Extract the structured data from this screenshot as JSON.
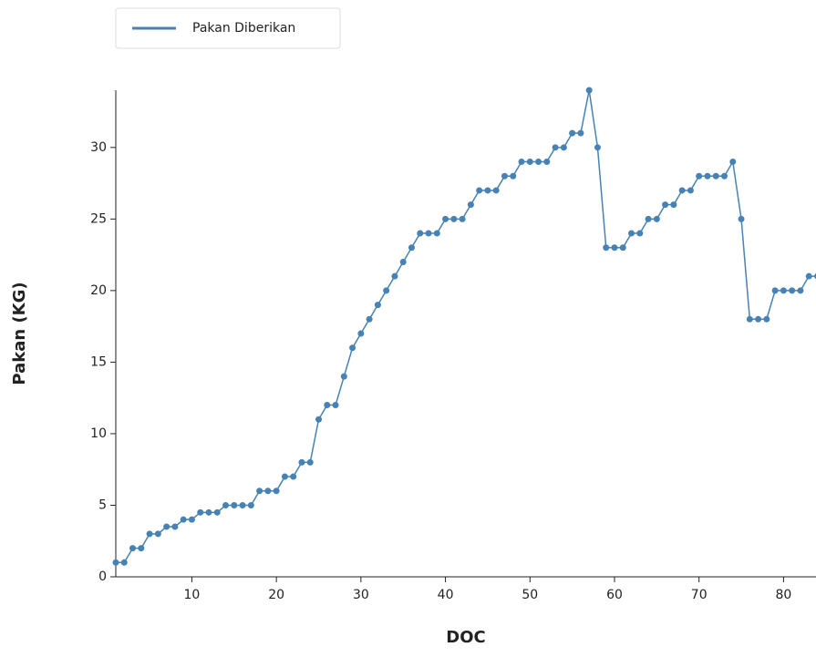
{
  "chart_data": {
    "type": "line",
    "xlabel": "DOC",
    "ylabel": "Pakan (KG)",
    "x": [
      1,
      2,
      3,
      4,
      5,
      6,
      7,
      8,
      9,
      10,
      11,
      12,
      13,
      14,
      15,
      16,
      17,
      18,
      19,
      20,
      21,
      22,
      23,
      24,
      25,
      26,
      27,
      28,
      29,
      30,
      31,
      32,
      33,
      34,
      35,
      36,
      37,
      38,
      39,
      40,
      41,
      42,
      43,
      44,
      45,
      46,
      47,
      48,
      49,
      50,
      51,
      52,
      53,
      54,
      55,
      56,
      57,
      58,
      59,
      60,
      61,
      62,
      63,
      64,
      65,
      66,
      67,
      68,
      69,
      70,
      71,
      72,
      73,
      74,
      75,
      76,
      77,
      78,
      79,
      80,
      81,
      82,
      83,
      84
    ],
    "series": [
      {
        "name": "Pakan Diberikan",
        "color": "#4682b4",
        "values": [
          1,
          1,
          2,
          2,
          3,
          3,
          3.5,
          3.5,
          4,
          4,
          4.5,
          4.5,
          4.5,
          5,
          5,
          5,
          5,
          6,
          6,
          6,
          7,
          7,
          8,
          8,
          11,
          12,
          12,
          14,
          16,
          17,
          18,
          19,
          20,
          21,
          22,
          23,
          24,
          24,
          24,
          25,
          25,
          25,
          26,
          27,
          27,
          27,
          28,
          28,
          29,
          29,
          29,
          29,
          30,
          30,
          31,
          31,
          34,
          30,
          23,
          23,
          23,
          24,
          24,
          25,
          25,
          26,
          26,
          27,
          27,
          28,
          28,
          28,
          28,
          29,
          25,
          18,
          18,
          18,
          20,
          20,
          20,
          20,
          21,
          21
        ]
      }
    ],
    "xlim": [
      1,
      84
    ],
    "ylim": [
      0,
      34
    ],
    "xticks": [
      10,
      20,
      30,
      40,
      50,
      60,
      70,
      80
    ],
    "yticks": [
      0,
      5,
      10,
      15,
      20,
      25,
      30
    ],
    "grid": false,
    "legend": "upper left"
  }
}
